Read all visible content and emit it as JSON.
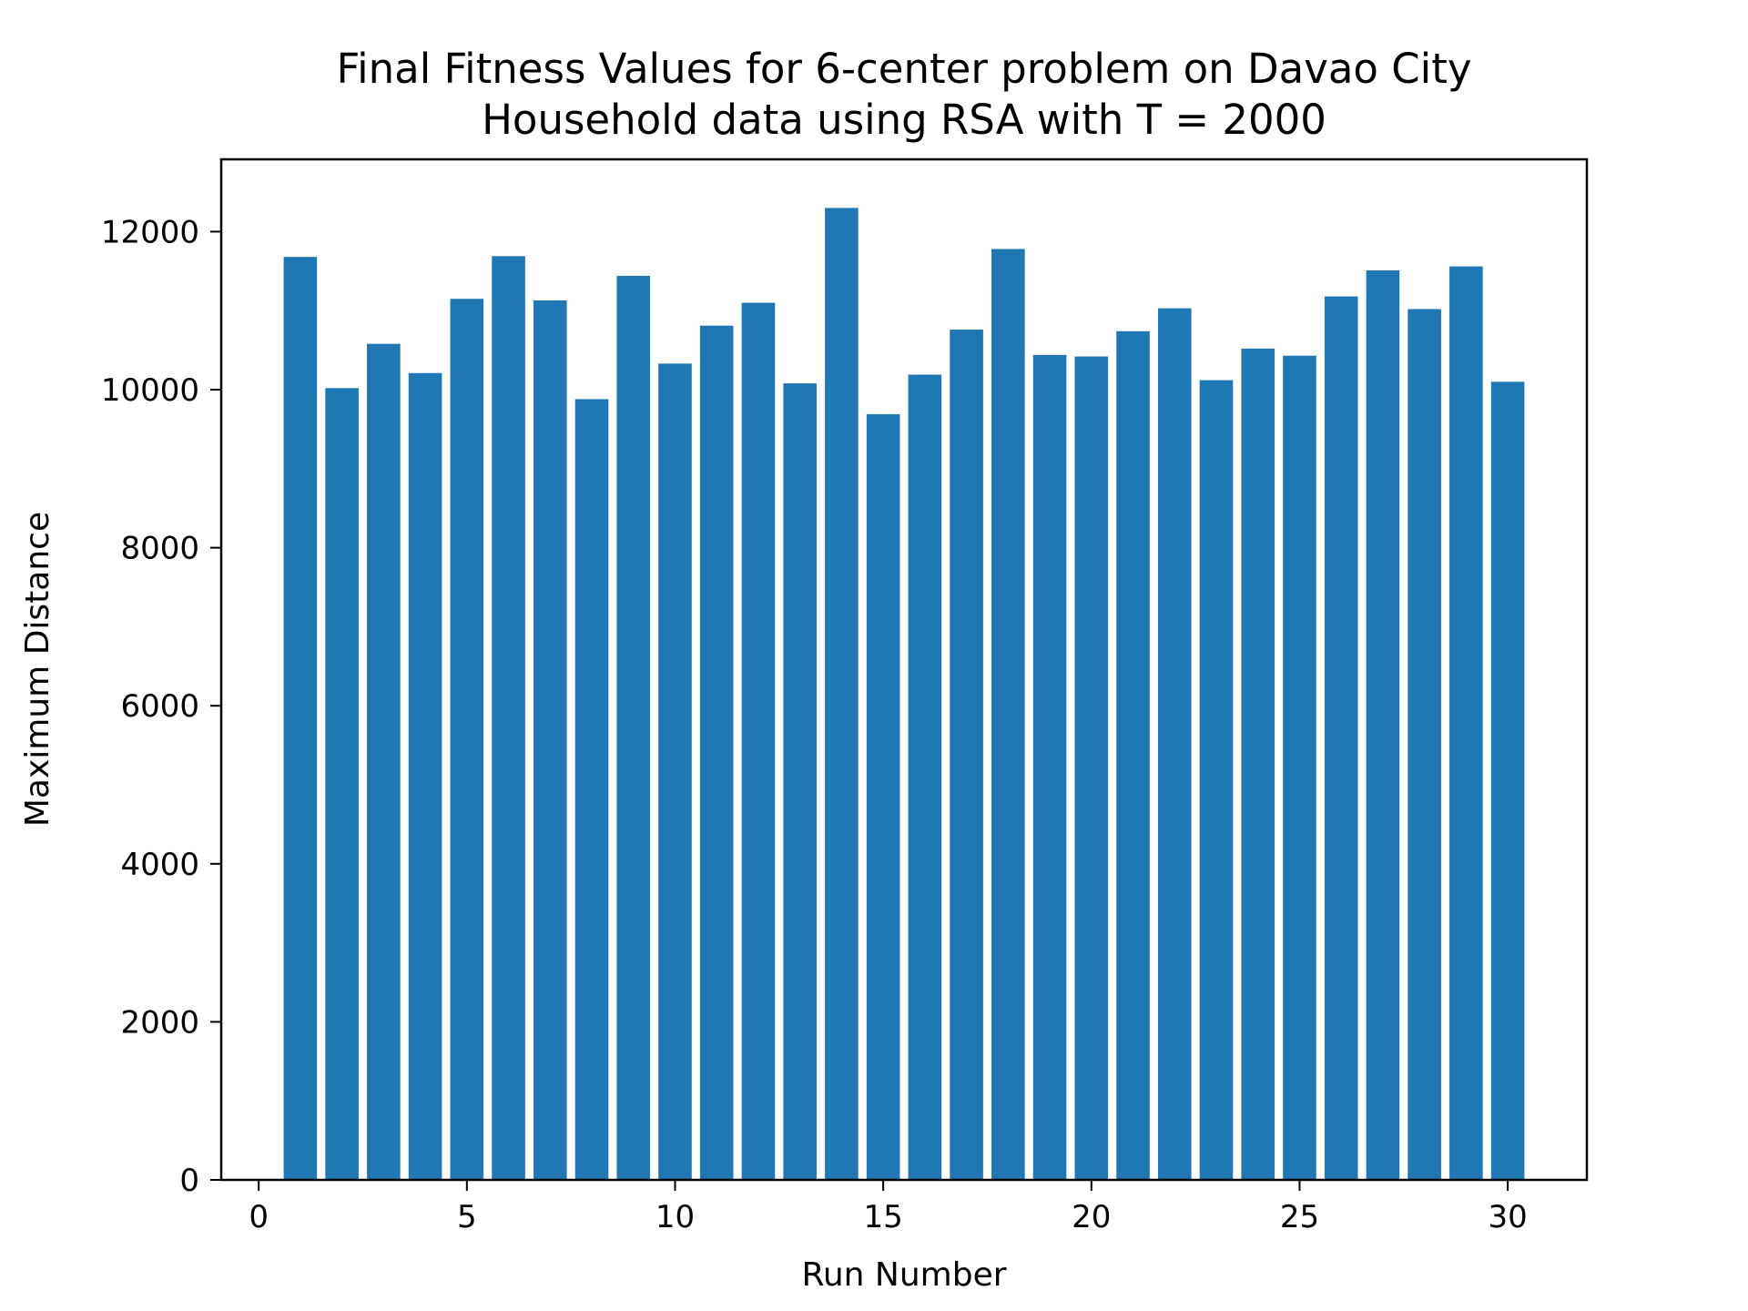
{
  "chart_data": {
    "type": "bar",
    "title_lines": [
      "Final Fitness Values for 6-center problem on Davao City",
      "Household data using RSA with T = 2000"
    ],
    "xlabel": "Run Number",
    "ylabel": "Maximum Distance",
    "x": [
      1,
      2,
      3,
      4,
      5,
      6,
      7,
      8,
      9,
      10,
      11,
      12,
      13,
      14,
      15,
      16,
      17,
      18,
      19,
      20,
      21,
      22,
      23,
      24,
      25,
      26,
      27,
      28,
      29,
      30
    ],
    "values": [
      11680,
      10020,
      10580,
      10210,
      11150,
      11690,
      11130,
      9880,
      11440,
      10330,
      10810,
      11100,
      10080,
      12300,
      9690,
      10190,
      10760,
      11780,
      10440,
      10420,
      10740,
      11030,
      10120,
      10520,
      10430,
      11180,
      11510,
      11020,
      11560,
      10100
    ],
    "bar_width": 0.8,
    "xlim": [
      -0.9,
      31.9
    ],
    "ylim": [
      0,
      12915
    ],
    "xticks": [
      0,
      5,
      10,
      15,
      20,
      25,
      30
    ],
    "yticks": [
      0,
      2000,
      4000,
      6000,
      8000,
      10000,
      12000
    ],
    "bar_color": "#1f77b4",
    "grid": false,
    "legend": "none"
  }
}
